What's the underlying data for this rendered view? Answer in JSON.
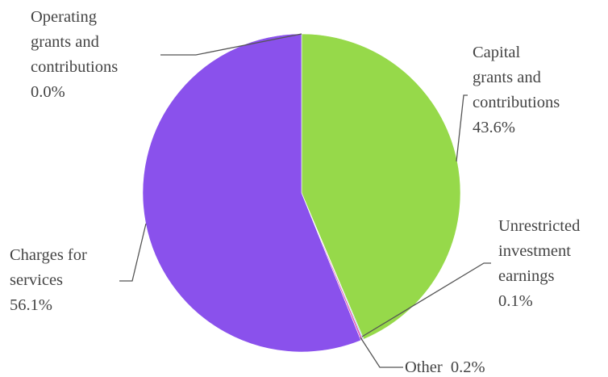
{
  "chart_data": {
    "type": "pie",
    "title": "",
    "slices": [
      {
        "label_lines": [
          "Capital",
          "grants and",
          "contributions"
        ],
        "value_text": "43.6%",
        "value": 43.6,
        "color": "#96d94a"
      },
      {
        "label_lines": [
          "Unrestricted",
          "investment",
          "earnings"
        ],
        "value_text": "0.1%",
        "value": 0.1,
        "color": "#7fc7e8"
      },
      {
        "label_lines": [
          "Other"
        ],
        "value_text": "0.2%",
        "value": 0.2,
        "color": "#e05ab8"
      },
      {
        "label_lines": [
          "Charges for",
          "services"
        ],
        "value_text": "56.1%",
        "value": 56.1,
        "color": "#8a51ec"
      },
      {
        "label_lines": [
          "Operating",
          "grants and",
          "contributions"
        ],
        "value_text": "0.0%",
        "value": 0.0,
        "color": "#f0a830"
      }
    ]
  }
}
